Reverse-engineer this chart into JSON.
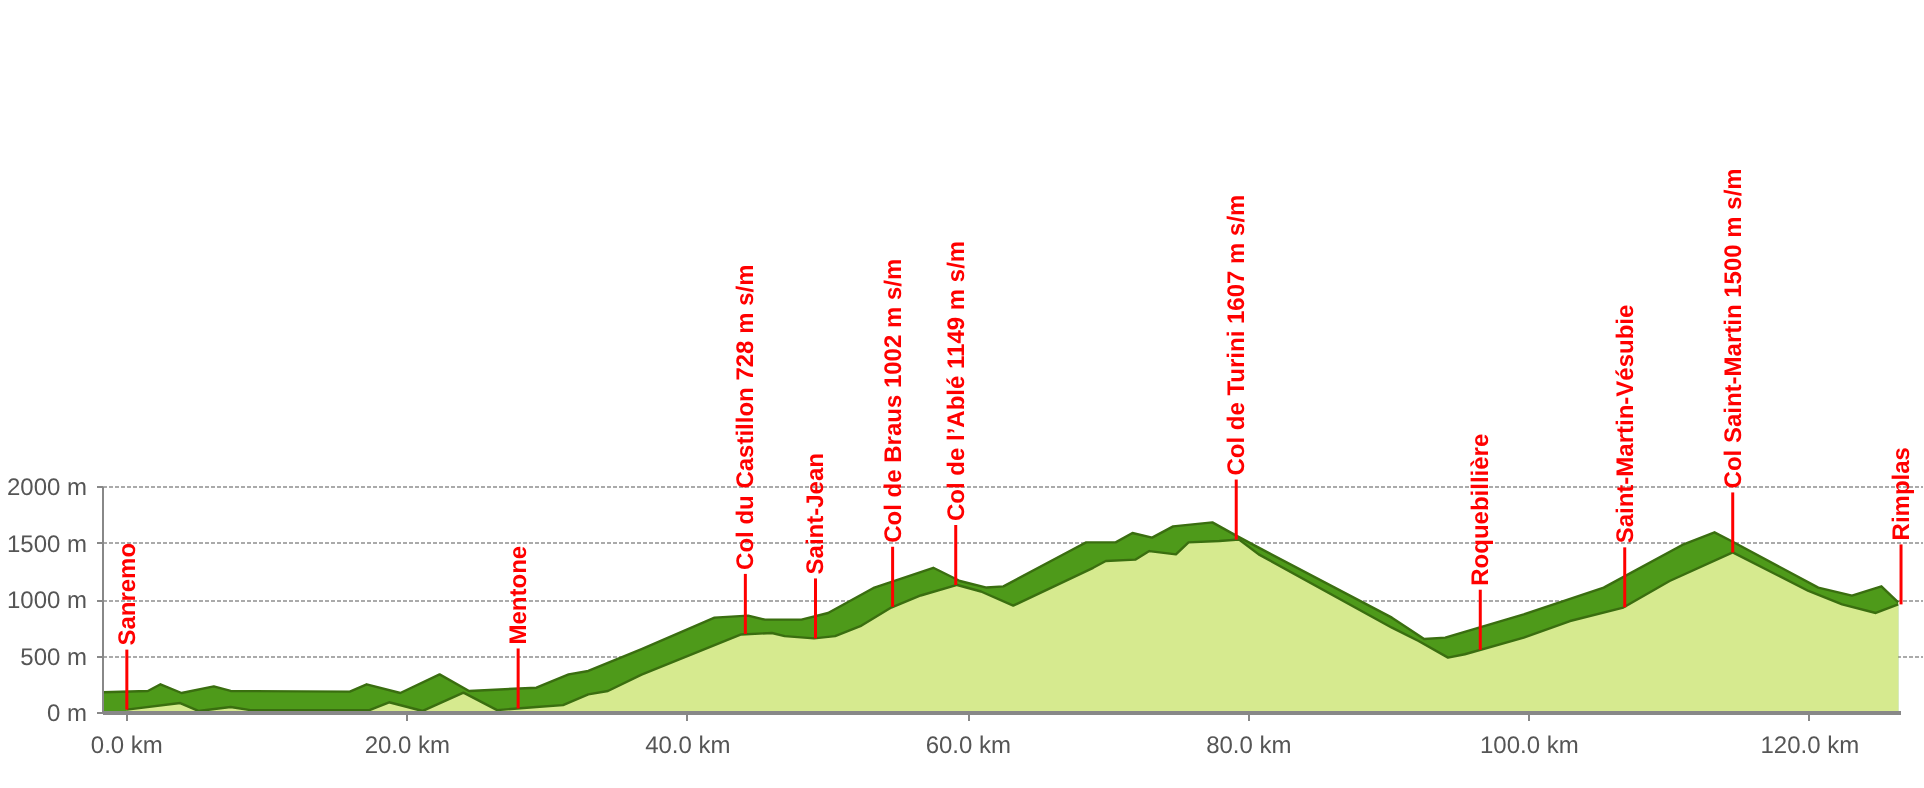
{
  "chart_data": {
    "type": "area",
    "xlim": [
      -1.7,
      126.5
    ],
    "ylim": [
      0,
      2000
    ],
    "xticks": [
      {
        "value": 0,
        "label": "0.0 km"
      },
      {
        "value": 20,
        "label": "20.0 km"
      },
      {
        "value": 40,
        "label": "40.0 km"
      },
      {
        "value": 60,
        "label": "60.0 km"
      },
      {
        "value": 80,
        "label": "80.0 km"
      },
      {
        "value": 100,
        "label": "100.0 km"
      },
      {
        "value": 120,
        "label": "120.0 km"
      }
    ],
    "yticks": [
      {
        "value": 0,
        "label": "0 m"
      },
      {
        "value": 500,
        "label": "500 m"
      },
      {
        "value": 1000,
        "label": "1000 m"
      },
      {
        "value": 1500,
        "label": "1500 m"
      },
      {
        "value": 2000,
        "label": "2000 m"
      }
    ],
    "grid": "y",
    "series": [
      {
        "color": "#4e9a1a",
        "x": [
          -1.7,
          1.5,
          2.4,
          3.9,
          6.2,
          7.4,
          15.9,
          17.1,
          19.5,
          22.3,
          24.4,
          29.2,
          31.5,
          32.9,
          36.7,
          41.9,
          44.3,
          45.5,
          48.1,
          50,
          53.3,
          57.5,
          59.4,
          61.3,
          62.5,
          67.5,
          68.4,
          70.5,
          71.7,
          73.1,
          74.6,
          77.4,
          79.1,
          80.7,
          90.2,
          92.5,
          94,
          99.6,
          105.3,
          111,
          113.2,
          114.4,
          120.6,
          123,
          125.1,
          126.3
        ],
        "values": [
          183,
          195,
          254,
          177,
          236,
          195,
          189,
          254,
          177,
          342,
          195,
          224,
          342,
          372,
          566,
          844,
          862,
          826,
          826,
          885,
          1110,
          1285,
          1168,
          1110,
          1121,
          1451,
          1510,
          1510,
          1593,
          1552,
          1652,
          1687,
          1570,
          1463,
          844,
          655,
          667,
          873,
          1110,
          1493,
          1599,
          1522,
          1110,
          1039,
          1121,
          979
        ]
      },
      {
        "color": "#d6ea8f",
        "x": [
          0,
          3.8,
          5.1,
          7.4,
          8.8,
          17.3,
          18.7,
          21.1,
          24,
          26.4,
          29.2,
          31.1,
          32.9,
          34.3,
          36.7,
          43.8,
          46,
          46.9,
          49,
          50.5,
          52.3,
          54.5,
          56.6,
          59.2,
          60.9,
          63.2,
          68.9,
          69.8,
          71.9,
          72.9,
          74.8,
          75.7,
          77.9,
          79.3,
          80.7,
          90.2,
          92.1,
          94.2,
          95.4,
          99.6,
          102.9,
          106.7,
          110,
          114.5,
          119.9,
          122.3,
          124.7,
          126.3
        ],
        "values": [
          30,
          88,
          18,
          53,
          25,
          25,
          95,
          18,
          180,
          25,
          53,
          70,
          165,
          195,
          340,
          695,
          708,
          680,
          660,
          680,
          768,
          933,
          1040,
          1133,
          1075,
          950,
          1285,
          1345,
          1357,
          1433,
          1404,
          1510,
          1522,
          1535,
          1404,
          755,
          637,
          490,
          520,
          667,
          814,
          933,
          1168,
          1421,
          1080,
          961,
          885,
          961
        ]
      }
    ],
    "annotations": [
      {
        "text": "Sanremo",
        "x": 0,
        "y": 30
      },
      {
        "text": "Mentone",
        "x": 27.9,
        "y": 40
      },
      {
        "text": "Col du Castillon 728 m s/m",
        "x": 44.1,
        "y": 700
      },
      {
        "text": "Saint-Jean",
        "x": 49.1,
        "y": 660
      },
      {
        "text": "Col de Braus 1002 m s/m",
        "x": 54.6,
        "y": 940
      },
      {
        "text": "Col de l’Ablé 1149 m s/m",
        "x": 59.1,
        "y": 1133
      },
      {
        "text": "Col de Turini 1607 m s/m",
        "x": 79.1,
        "y": 1535
      },
      {
        "text": "Roquebillière",
        "x": 96.5,
        "y": 560
      },
      {
        "text": "Saint-Martin-Vésubie",
        "x": 106.8,
        "y": 935
      },
      {
        "text": "Col Saint-Martin 1500 m s/m",
        "x": 114.5,
        "y": 1421
      },
      {
        "text": "Rimplas",
        "x": 126.5,
        "y": 961
      }
    ]
  }
}
